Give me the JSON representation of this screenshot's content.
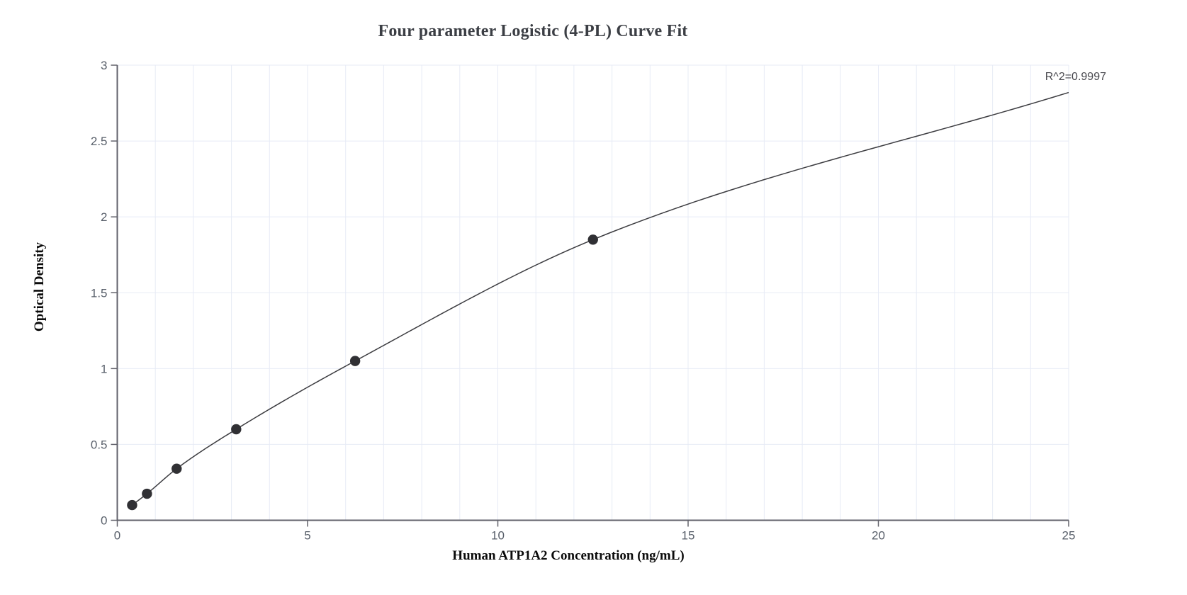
{
  "page": {
    "background": "#ffffff"
  },
  "chart_data": {
    "type": "scatter",
    "title": "Four parameter Logistic (4-PL) Curve Fit",
    "xlabel": "Human ATP1A2 Concentration (ng/mL)",
    "ylabel": "Optical Density",
    "annotation": "R^2=0.9997",
    "xlim": [
      0,
      25
    ],
    "ylim": [
      0,
      3
    ],
    "x_ticks": [
      0,
      5,
      10,
      15,
      20,
      25
    ],
    "y_ticks": [
      0,
      0.5,
      1,
      1.5,
      2,
      2.5,
      3
    ],
    "x_grid_step": 1,
    "y_grid_step": 0.5,
    "grid": true,
    "legend_position": "none",
    "series": [
      {
        "name": "standard-data-points",
        "type": "scatter",
        "points": [
          {
            "x": 0.39,
            "y": 0.1
          },
          {
            "x": 0.78,
            "y": 0.175
          },
          {
            "x": 1.56,
            "y": 0.34
          },
          {
            "x": 3.125,
            "y": 0.6
          },
          {
            "x": 6.25,
            "y": 1.05
          },
          {
            "x": 12.5,
            "y": 1.85
          }
        ]
      },
      {
        "name": "4pl-fitted-curve",
        "type": "line",
        "model": "4-PL",
        "anchors": [
          {
            "x": 0.39,
            "y": 0.1
          },
          {
            "x": 0.78,
            "y": 0.175
          },
          {
            "x": 1.56,
            "y": 0.34
          },
          {
            "x": 3.125,
            "y": 0.6
          },
          {
            "x": 6.25,
            "y": 1.05
          },
          {
            "x": 12.5,
            "y": 1.85
          },
          {
            "x": 25,
            "y": 2.82
          }
        ]
      }
    ],
    "colors": {
      "background": "#ffffff",
      "grid": "#e7ebf6",
      "axis": "#62626b",
      "tick_label": "#585f6a",
      "title": "#3b3e44",
      "axis_label": "#0b0b0b",
      "curve": "#3c3c40",
      "point": "#303034",
      "annotation": "#47474d"
    }
  }
}
